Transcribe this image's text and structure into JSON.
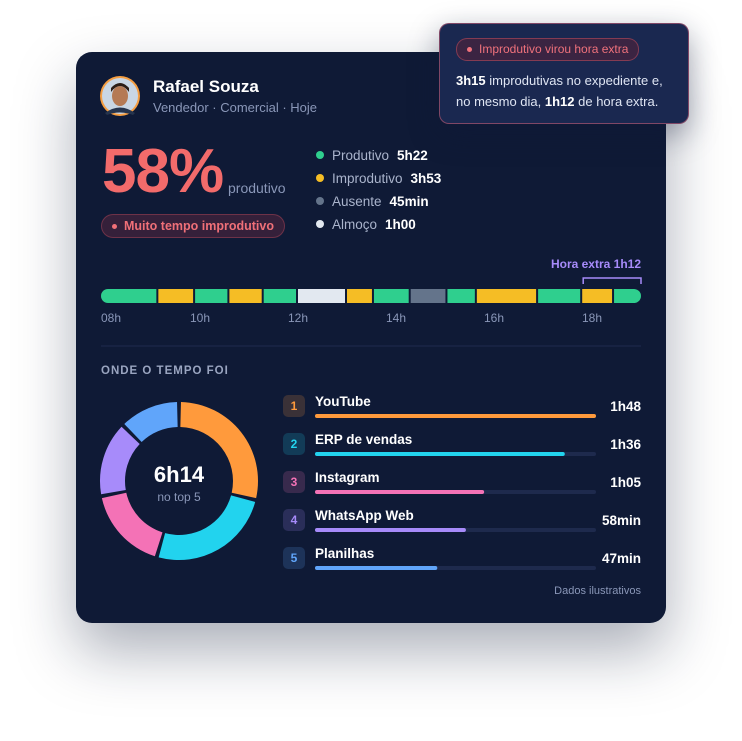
{
  "profile": {
    "name": "Rafael Souza",
    "subtitle": "Vendedor · Comercial · Hoje"
  },
  "alert": {
    "tag": "Improdutivo virou hora extra",
    "message": [
      "3h15",
      " improdutivas no expediente e, no mesmo dia, ",
      "1h12",
      " de hora extra."
    ]
  },
  "summary": {
    "percent": "58%",
    "label": "produtivo",
    "badge": "Muito tempo improdutivo"
  },
  "legend": [
    {
      "name": "Produtivo",
      "value": "5h22",
      "color": "#2fcf8e"
    },
    {
      "name": "Improdutivo",
      "value": "3h53",
      "color": "#f5bd25"
    },
    {
      "name": "Ausente",
      "value": "45min",
      "color": "#64748b"
    },
    {
      "name": "Almoço",
      "value": "1h00",
      "color": "#e2e8f0"
    }
  ],
  "timeline": {
    "xlim": [
      8,
      19
    ],
    "xticks": [
      {
        "value": 8,
        "label": "08h"
      },
      {
        "value": 10,
        "label": "10h"
      },
      {
        "value": 12,
        "label": "12h"
      },
      {
        "value": 14,
        "label": "14h"
      },
      {
        "value": 16,
        "label": "16h"
      },
      {
        "value": 18,
        "label": "18h"
      }
    ],
    "overtime_label": "Hora extra 1h12",
    "overtime_start": 17.8,
    "segments": [
      {
        "start": 8,
        "end": 9.15,
        "color": "#2fcf8e"
      },
      {
        "start": 9.15,
        "end": 9.9,
        "color": "#f5bd25"
      },
      {
        "start": 9.9,
        "end": 10.6,
        "color": "#2fcf8e"
      },
      {
        "start": 10.6,
        "end": 11.3,
        "color": "#f5bd25"
      },
      {
        "start": 11.3,
        "end": 12,
        "color": "#2fcf8e"
      },
      {
        "start": 12,
        "end": 13,
        "color": "#e2e8f0"
      },
      {
        "start": 13,
        "end": 13.55,
        "color": "#f5bd25"
      },
      {
        "start": 13.55,
        "end": 14.3,
        "color": "#2fcf8e"
      },
      {
        "start": 14.3,
        "end": 15.05,
        "color": "#64748b"
      },
      {
        "start": 15.05,
        "end": 15.65,
        "color": "#2fcf8e"
      },
      {
        "start": 15.65,
        "end": 16.9,
        "color": "#f5bd25"
      },
      {
        "start": 16.9,
        "end": 17.8,
        "color": "#2fcf8e"
      },
      {
        "start": 17.8,
        "end": 18.45,
        "color": "#f5bd25"
      },
      {
        "start": 18.45,
        "end": 19,
        "color": "#2fcf8e"
      }
    ]
  },
  "apps": {
    "title": "ONDE O TEMPO FOI",
    "total": "6h14",
    "total_caption": "no top 5",
    "items": [
      {
        "rank": 1,
        "name": "YouTube",
        "time": {
          "value": 108,
          "label": "1h48"
        },
        "color": "#ff9a3c"
      },
      {
        "rank": 2,
        "name": "ERP de vendas",
        "time": {
          "value": 96,
          "label": "1h36"
        },
        "color": "#22d3ee"
      },
      {
        "rank": 3,
        "name": "Instagram",
        "time": {
          "value": 65,
          "label": "1h05"
        },
        "color": "#f472b6"
      },
      {
        "rank": 4,
        "name": "WhatsApp Web",
        "time": {
          "value": 58,
          "label": "58min"
        },
        "color": "#a78bfa"
      },
      {
        "rank": 5,
        "name": "Planilhas",
        "time": {
          "value": 47,
          "label": "47min"
        },
        "color": "#60a5fa"
      }
    ],
    "footnote": "Dados ilustrativos"
  }
}
